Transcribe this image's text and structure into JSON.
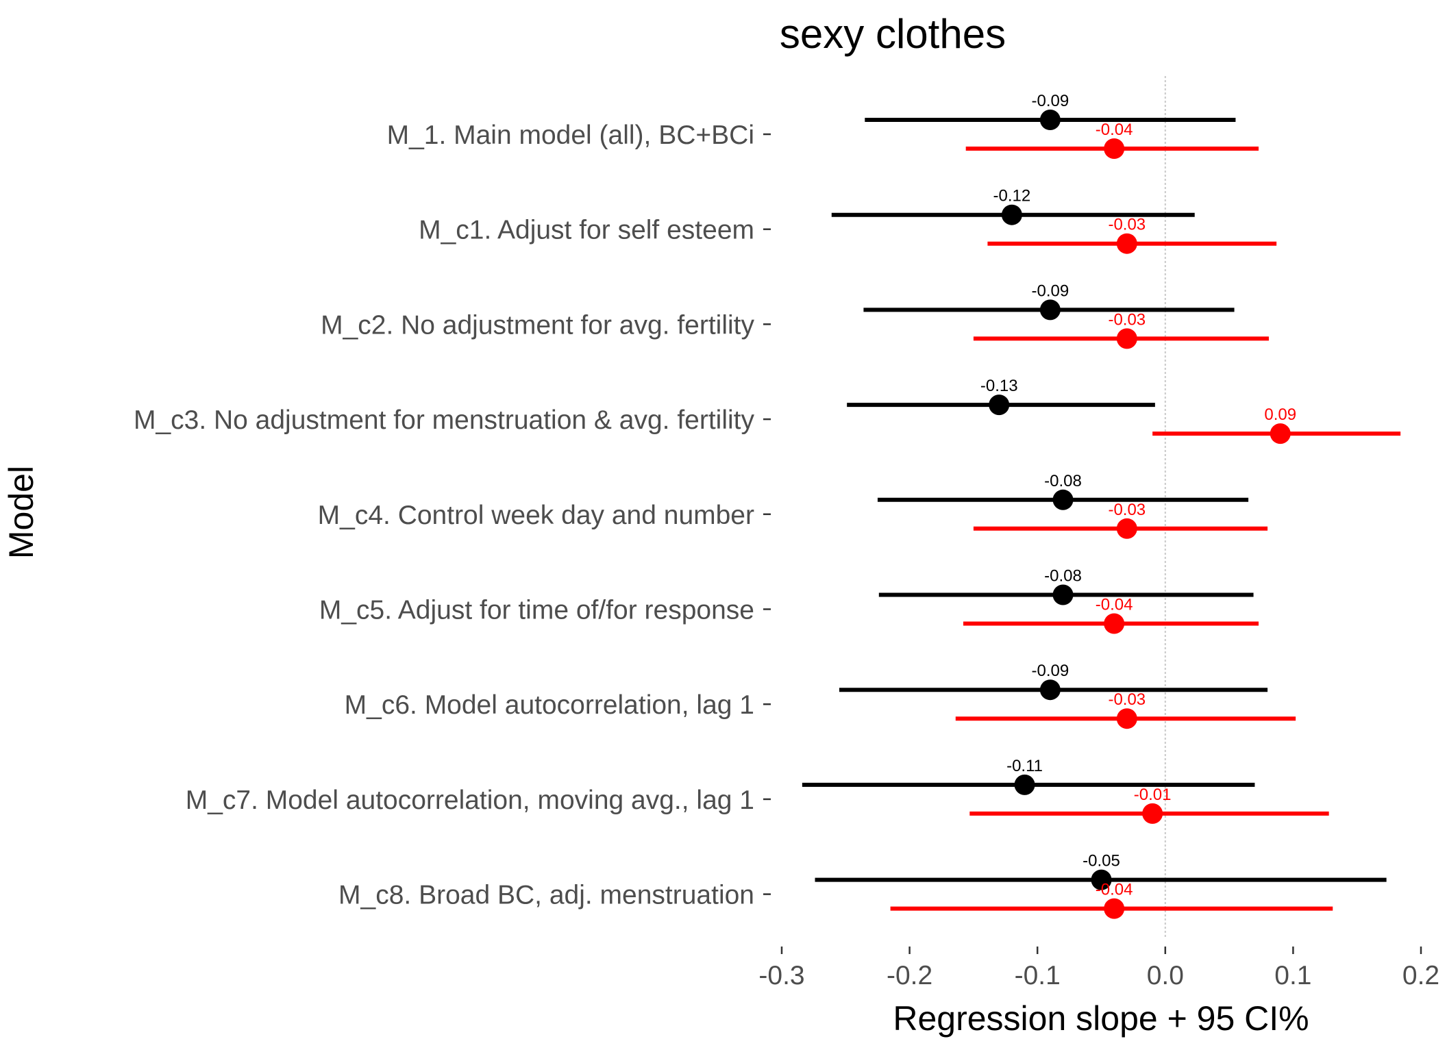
{
  "chart_data": {
    "type": "forest",
    "title": "sexy clothes",
    "xlabel": "Regression slope + 95 CI%",
    "ylabel": "Model",
    "xlim": [
      -0.3,
      0.2
    ],
    "x_ticks": [
      -0.3,
      -0.2,
      -0.1,
      0.0,
      0.1,
      0.2
    ],
    "x_tick_labels": [
      "-0.3",
      "-0.2",
      "-0.1",
      "0.0",
      "0.1",
      "0.2"
    ],
    "reference_line": 0,
    "grid": false,
    "legend": "none",
    "categories": [
      "M_1. Main model (all), BC+BCi",
      "M_c1. Adjust for self esteem",
      "M_c2. No adjustment for avg. fertility",
      "M_c3. No adjustment for menstruation & avg. fertility",
      "M_c4. Control week day and number",
      "M_c5. Adjust for time of/for response",
      "M_c6. Model autocorrelation, lag 1",
      "M_c7. Model autocorrelation, moving avg., lag 1",
      "M_c8. Broad BC, adj. menstruation"
    ],
    "series": [
      {
        "color": "#000000",
        "estimates": [
          -0.09,
          -0.12,
          -0.09,
          -0.13,
          -0.08,
          -0.08,
          -0.09,
          -0.11,
          -0.05
        ],
        "lower": [
          -0.235,
          -0.261,
          -0.236,
          -0.249,
          -0.225,
          -0.224,
          -0.255,
          -0.284,
          -0.274
        ],
        "upper": [
          0.055,
          0.023,
          0.054,
          -0.008,
          0.065,
          0.069,
          0.08,
          0.07,
          0.173
        ],
        "labels": [
          "-0.09",
          "-0.12",
          "-0.09",
          "-0.13",
          "-0.08",
          "-0.08",
          "-0.09",
          "-0.11",
          "-0.05"
        ]
      },
      {
        "color": "#ff0000",
        "estimates": [
          -0.04,
          -0.03,
          -0.03,
          0.09,
          -0.03,
          -0.04,
          -0.03,
          -0.01,
          -0.04
        ],
        "lower": [
          -0.156,
          -0.139,
          -0.15,
          -0.01,
          -0.15,
          -0.158,
          -0.164,
          -0.153,
          -0.215
        ],
        "upper": [
          0.073,
          0.087,
          0.081,
          0.184,
          0.08,
          0.073,
          0.102,
          0.128,
          0.131
        ],
        "labels": [
          "-0.04",
          "-0.03",
          "-0.03",
          "0.09",
          "-0.03",
          "-0.04",
          "-0.03",
          "-0.01",
          "-0.04"
        ]
      }
    ]
  }
}
